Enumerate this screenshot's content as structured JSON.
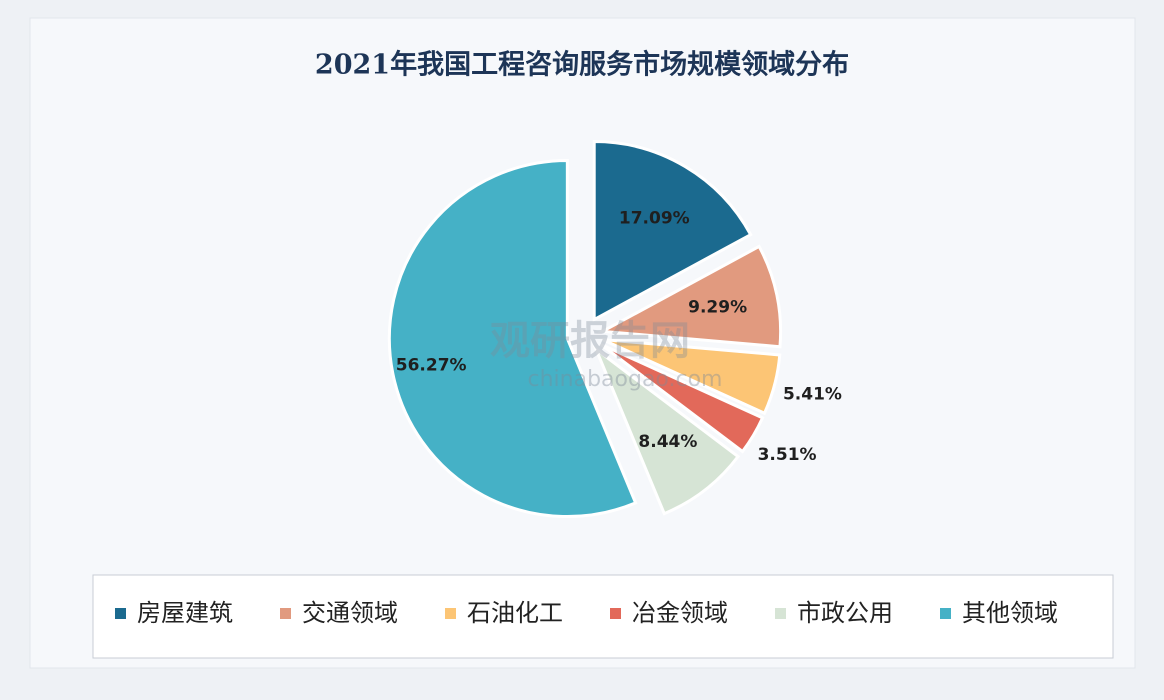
{
  "chart_data": {
    "type": "pie",
    "title": "2021年我国工程咨询服务市场规模领域分布",
    "categories": [
      "房屋建筑",
      "交通领域",
      "石油化工",
      "冶金领域",
      "市政公用",
      "其他领域"
    ],
    "values": [
      17.09,
      9.29,
      5.41,
      3.51,
      8.44,
      56.27
    ],
    "value_labels": [
      "17.09%",
      "9.29%",
      "5.41%",
      "3.51%",
      "8.44%",
      "56.27%"
    ],
    "colors": [
      "#1b6a8f",
      "#e19a7f",
      "#fcc575",
      "#e2695a",
      "#d6e4d5",
      "#45b1c6"
    ],
    "legend": "bottom",
    "watermark": {
      "name": "观研报告网",
      "url": "chinabaogao.com"
    }
  }
}
